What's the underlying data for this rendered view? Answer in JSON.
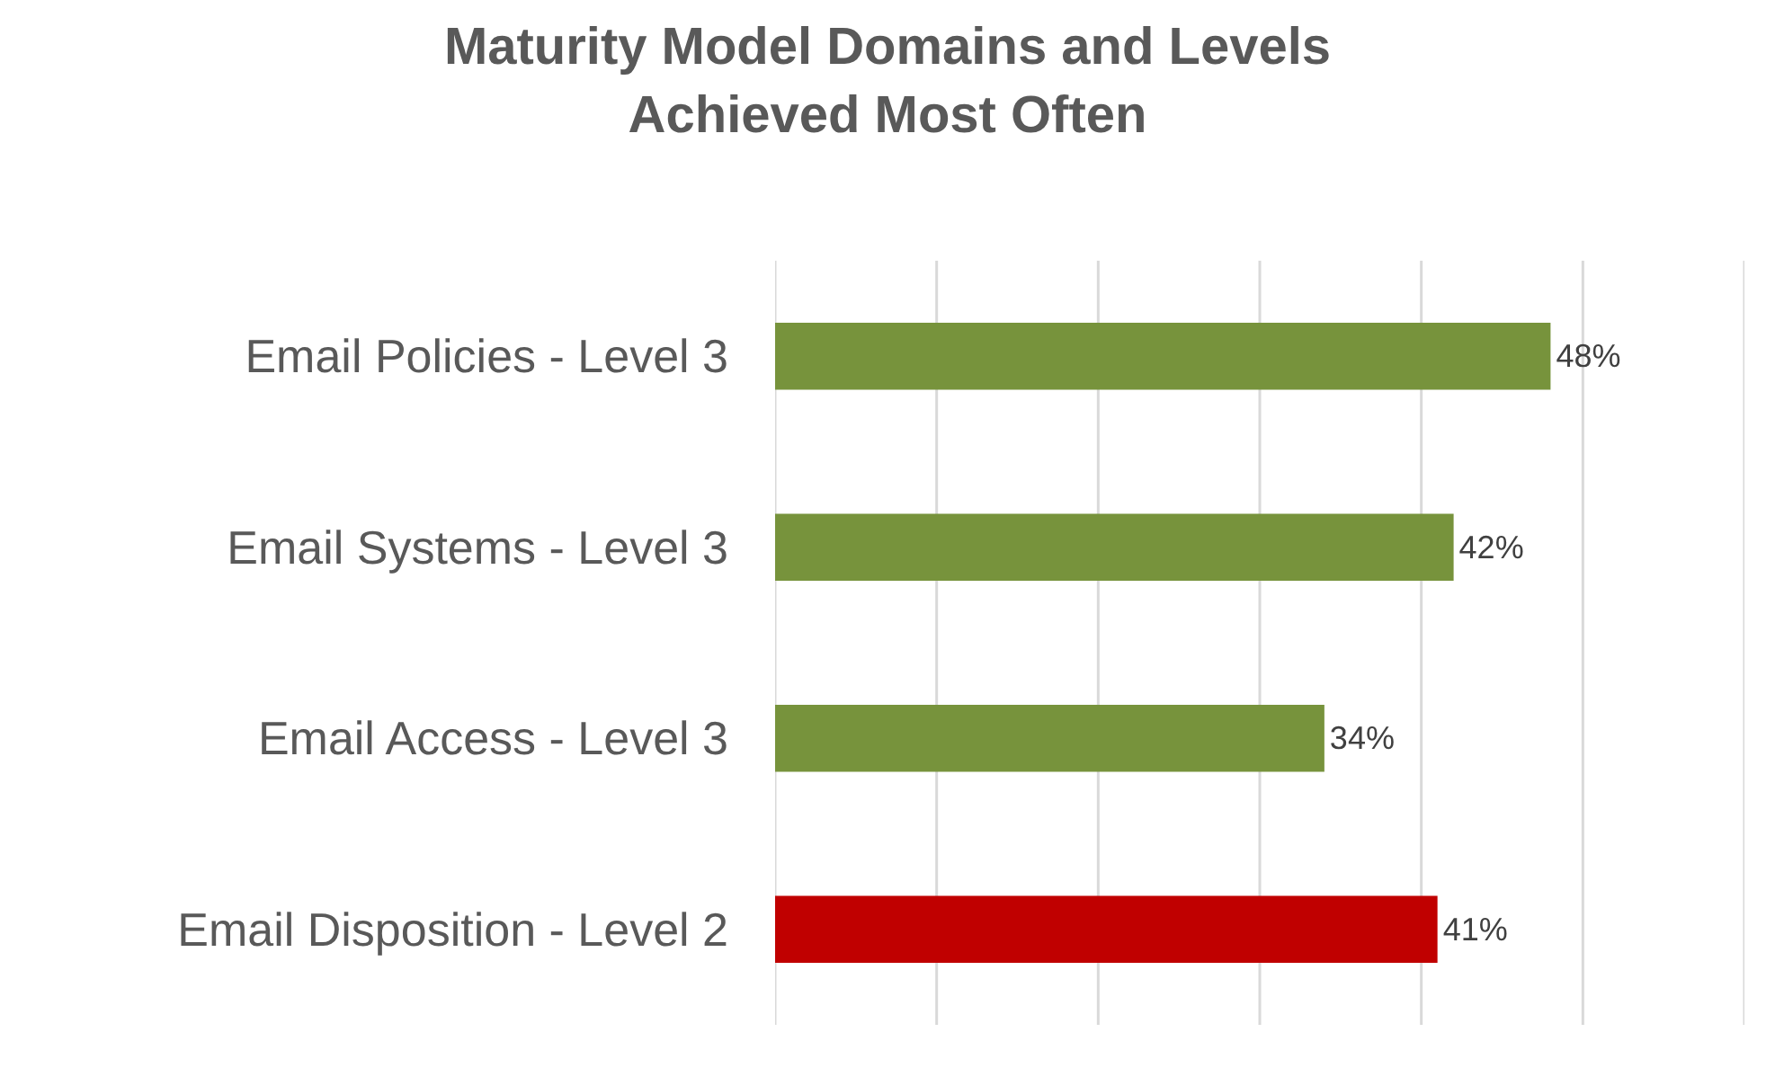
{
  "chart_data": {
    "type": "bar",
    "orientation": "horizontal",
    "title": "Maturity Model Domains and Levels\nAchieved Most Often",
    "categories": [
      "Email Policies - Level 3",
      "Email Systems - Level 3",
      "Email Access - Level 3",
      "Email Disposition - Level 2"
    ],
    "values": [
      48,
      42,
      34,
      41
    ],
    "colors": [
      "#77933c",
      "#77933c",
      "#77933c",
      "#c00000"
    ],
    "value_labels": [
      "48%",
      "42%",
      "34%",
      "41%"
    ],
    "xlim": [
      0,
      60
    ],
    "xticks": [
      {
        "value": 0,
        "label": null
      },
      {
        "value": 10,
        "label": null
      },
      {
        "value": 20,
        "label": null
      },
      {
        "value": 30,
        "label": null
      },
      {
        "value": 40,
        "label": null
      },
      {
        "value": 50,
        "label": null
      },
      {
        "value": 60,
        "label": null
      }
    ],
    "grid": "x",
    "tick_labels": "y",
    "legend": false
  }
}
